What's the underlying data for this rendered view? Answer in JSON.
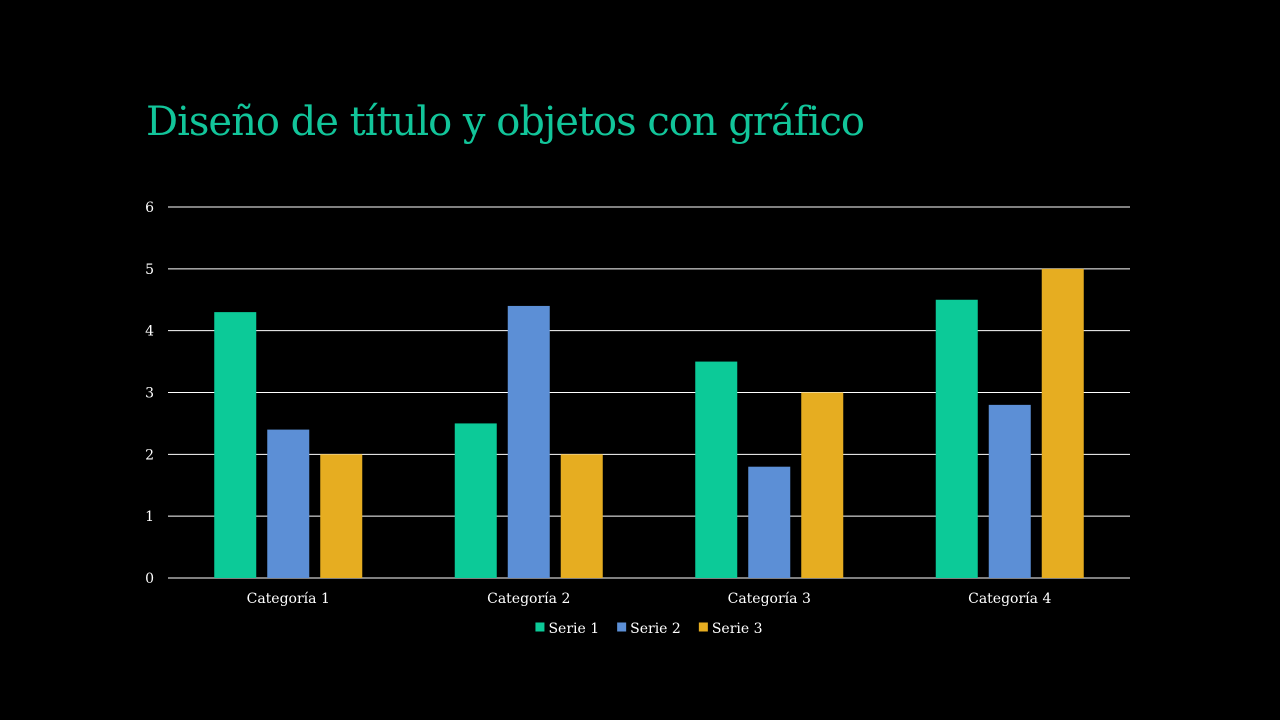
{
  "slide": {
    "title": "Diseño de título y objetos con gráfico",
    "title_color": "#12C59A",
    "background": "#000000"
  },
  "chart_data": {
    "type": "bar",
    "categories": [
      "Categoría 1",
      "Categoría 2",
      "Categoría 3",
      "Categoría 4"
    ],
    "series": [
      {
        "name": "Serie 1",
        "values": [
          4.3,
          2.5,
          3.5,
          4.5
        ],
        "color": "#0CCA98"
      },
      {
        "name": "Serie 2",
        "values": [
          2.4,
          4.4,
          1.8,
          2.8
        ],
        "color": "#5C8FD6"
      },
      {
        "name": "Serie 3",
        "values": [
          2,
          2,
          3,
          5
        ],
        "color": "#E6AD21"
      }
    ],
    "yticks": [
      "0",
      "1",
      "2",
      "3",
      "4",
      "5",
      "6"
    ],
    "ylim": [
      0,
      6
    ],
    "grid": true,
    "gridline_color": "#FFFFFF",
    "legend": "bottom",
    "title": "",
    "xlabel": "",
    "ylabel": ""
  }
}
